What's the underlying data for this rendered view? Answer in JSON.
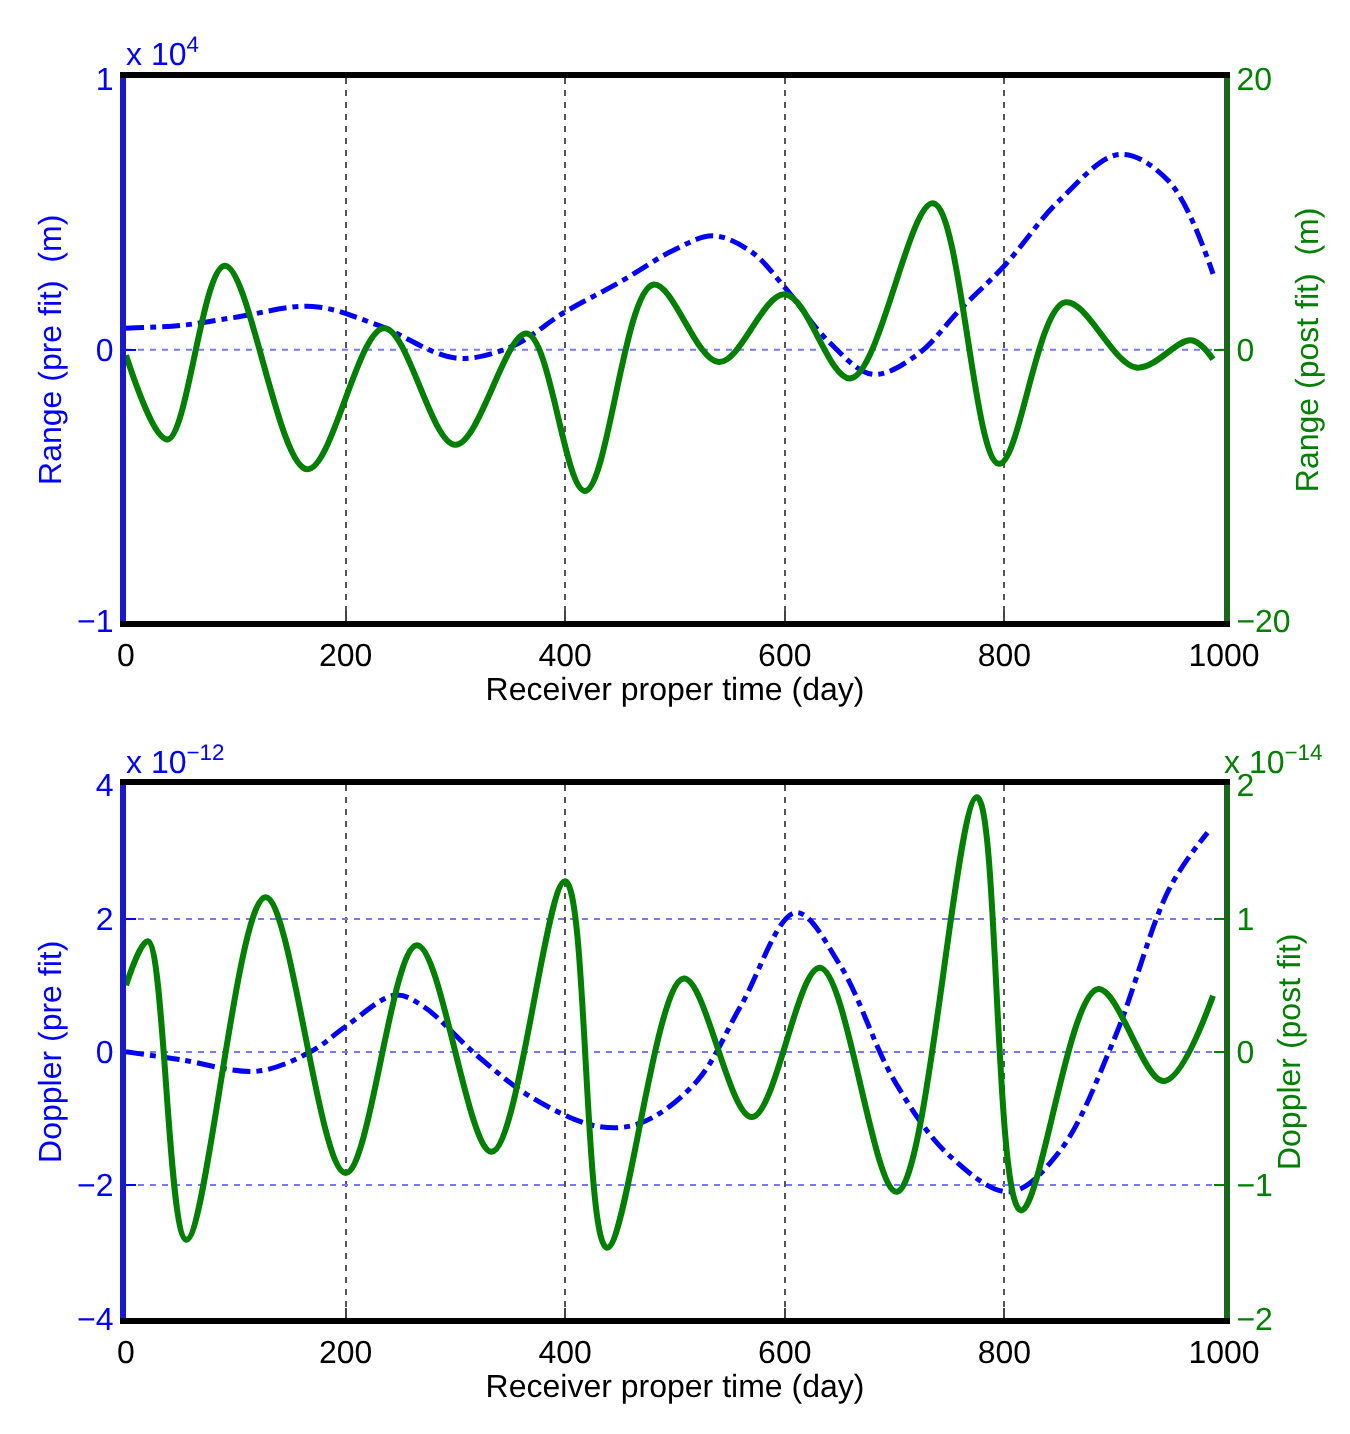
{
  "chart_data": [
    {
      "type": "line",
      "xlabel": "Receiver proper time (day)",
      "ylabel": "Range (pre fit)  (m)",
      "y2label": "Range (post fit)  (m)",
      "xlim": [
        0,
        1000
      ],
      "xticks": [
        0,
        200,
        400,
        600,
        800,
        1000
      ],
      "ylim": [
        -1,
        1
      ],
      "yticks": [
        -1,
        0,
        1
      ],
      "y2lim": [
        -20,
        20
      ],
      "y2ticks": [
        -20,
        0,
        20
      ],
      "grid": "x",
      "ref_lines": [
        {
          "axis": "y",
          "value": 0,
          "color": "#7777ff",
          "line_style": "dotted"
        }
      ],
      "annotations": [
        "x 10$^{4}$"
      ],
      "series": [
        {
          "color": "#0000ff",
          "line_style": "dashed",
          "x": [
            0,
            50,
            100,
            170,
            230,
            300,
            350,
            400,
            450,
            500,
            535,
            570,
            600,
            640,
            680,
            720,
            760,
            800,
            850,
            905,
            950,
            990
          ],
          "values": [
            0.08,
            0.09,
            0.12,
            0.16,
            0.09,
            -0.03,
            0.01,
            0.14,
            0.25,
            0.37,
            0.42,
            0.36,
            0.23,
            0.03,
            -0.09,
            -0.02,
            0.15,
            0.31,
            0.55,
            0.72,
            0.62,
            0.28
          ]
        },
        {
          "color": "#007f00",
          "line_style": "solid",
          "axis": "y2",
          "x": [
            0,
            38,
            90,
            165,
            235,
            300,
            365,
            418,
            480,
            540,
            600,
            660,
            735,
            795,
            855,
            920,
            970,
            990
          ],
          "values": [
            -0.4,
            -6.6,
            6.2,
            -8.8,
            1.6,
            -7.0,
            1.2,
            -10.4,
            4.8,
            -0.9,
            4.1,
            -2.1,
            10.8,
            -8.4,
            3.5,
            -1.3,
            0.7,
            -0.7
          ]
        }
      ]
    },
    {
      "type": "line",
      "xlabel": "Receiver proper time (day)",
      "ylabel": "Doppler (pre fit)",
      "y2label": "Doppler (post fit)",
      "xlim": [
        0,
        1000
      ],
      "xticks": [
        0,
        200,
        400,
        600,
        800,
        1000
      ],
      "ylim": [
        -4,
        4
      ],
      "yticks": [
        -4,
        -2,
        0,
        2,
        4
      ],
      "y2lim": [
        -2,
        2
      ],
      "y2ticks": [
        -2,
        -1,
        0,
        1,
        2
      ],
      "grid": true,
      "annotations": [
        "x 10$^{−12}$",
        "x 10$^{−14}$"
      ],
      "series": [
        {
          "color": "#0000ff",
          "line_style": "dashed",
          "x": [
            0,
            50,
            120,
            170,
            200,
            245,
            270,
            320,
            370,
            430,
            470,
            520,
            560,
            610,
            650,
            700,
            750,
            805,
            850,
            900,
            950,
            985
          ],
          "values": [
            0,
            -0.12,
            -0.29,
            0.02,
            0.38,
            0.85,
            0.69,
            -0.06,
            -0.69,
            -1.12,
            -1.06,
            -0.44,
            0.69,
            2.09,
            1.31,
            -0.44,
            -1.56,
            -2.1,
            -1.5,
            0.19,
            2.44,
            3.29
          ]
        },
        {
          "color": "#007f00",
          "line_style": "solid",
          "axis": "y2",
          "x": [
            0,
            20,
            55,
            127,
            200,
            265,
            333,
            400,
            438,
            508,
            570,
            632,
            702,
            775,
            815,
            885,
            945,
            990
          ],
          "values": [
            0.5,
            0.83,
            -1.41,
            1.16,
            -0.91,
            0.8,
            -0.75,
            1.28,
            -1.47,
            0.55,
            -0.49,
            0.63,
            -1.05,
            1.91,
            -1.19,
            0.47,
            -0.22,
            0.42
          ]
        }
      ]
    }
  ]
}
